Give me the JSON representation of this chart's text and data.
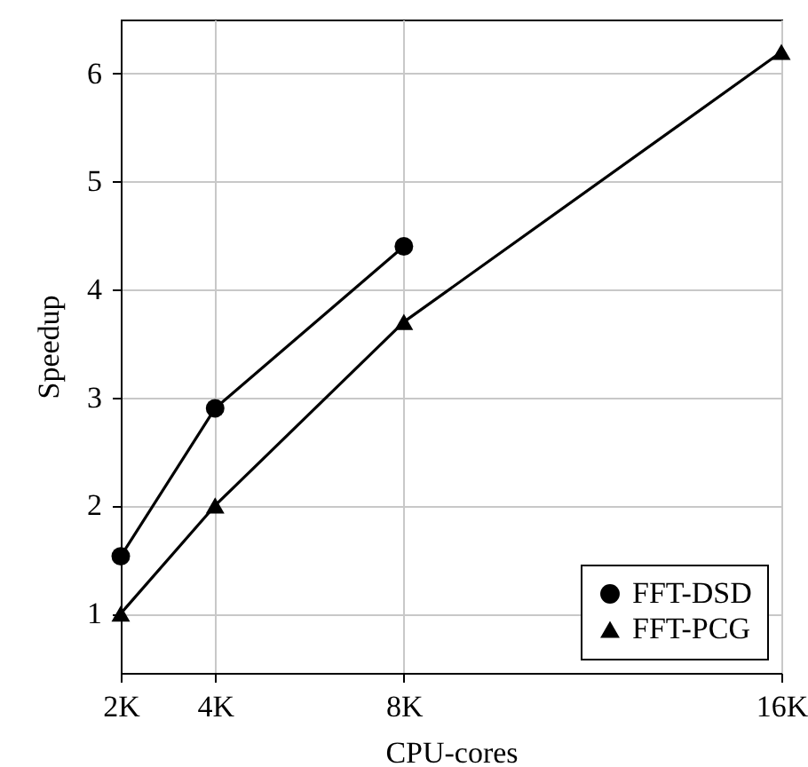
{
  "chart_data": {
    "type": "line",
    "xlabel": "CPU-cores",
    "ylabel": "Speedup",
    "xlim": [
      2,
      16
    ],
    "xticks": [
      {
        "value": 2,
        "label": "2K"
      },
      {
        "value": 4,
        "label": "4K"
      },
      {
        "value": 8,
        "label": "8K"
      },
      {
        "value": 16,
        "label": "16K"
      }
    ],
    "ylim": [
      0.45,
      6.5
    ],
    "yticks": [
      1,
      2,
      3,
      4,
      5,
      6
    ],
    "grid": true,
    "legend": "bottom right",
    "line_style": "solid",
    "series": [
      {
        "name": "FFT-DSD",
        "color": "#000000",
        "marker": "circle",
        "x": [
          2,
          4,
          8
        ],
        "values": [
          1.53,
          2.9,
          4.4
        ]
      },
      {
        "name": "FFT-PCG",
        "color": "#000000",
        "marker": "triangle",
        "x": [
          2,
          4,
          8,
          16
        ],
        "values": [
          1,
          2,
          3.7,
          6.2
        ]
      }
    ]
  }
}
